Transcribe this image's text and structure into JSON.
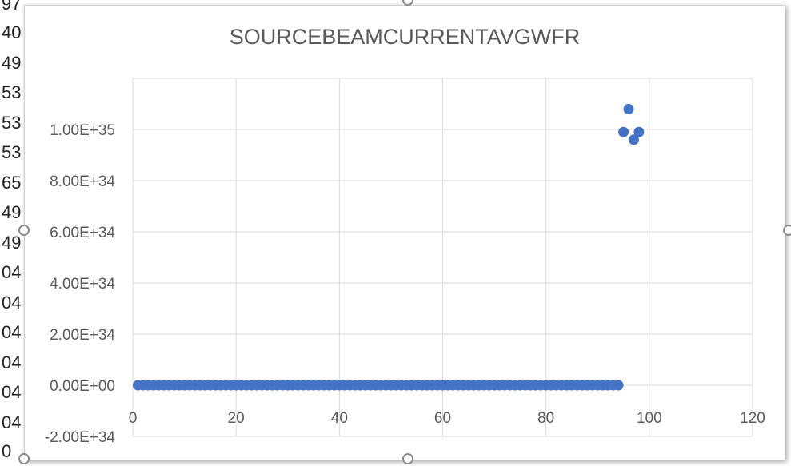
{
  "spreadsheet_fragments": [
    "97",
    "40",
    "49",
    "53",
    "53",
    "53",
    "65",
    "49",
    "49",
    "04",
    "04",
    "04",
    "04",
    "04",
    "04",
    "0"
  ],
  "chart_data": {
    "type": "scatter",
    "title": "SOURCEBEAMCURRENTAVGWFR",
    "xlabel": "",
    "ylabel": "",
    "xlim": [
      0,
      120
    ],
    "ylim": [
      -2e+34,
      1.2e+35
    ],
    "x_ticks": [
      0,
      20,
      40,
      60,
      80,
      100,
      120
    ],
    "y_ticks": [
      -2e+34,
      0,
      2e+34,
      4e+34,
      6e+34,
      8e+34,
      1e+35
    ],
    "x_tick_labels": [
      "0",
      "20",
      "40",
      "60",
      "80",
      "100",
      "120"
    ],
    "y_tick_labels": [
      "-2.00E+34",
      "0.00E+00",
      "2.00E+34",
      "4.00E+34",
      "6.00E+34",
      "8.00E+34",
      "1.00E+35"
    ],
    "grid": true,
    "legend": "none",
    "marker_color": "#4472c4",
    "baseline_series": {
      "x_start": 1,
      "x_end": 94,
      "step": 1,
      "y": 0
    },
    "outliers": [
      {
        "x": 95,
        "y": 9.9e+34
      },
      {
        "x": 96,
        "y": 1.08e+35
      },
      {
        "x": 97,
        "y": 9.6e+34
      },
      {
        "x": 98,
        "y": 9.9e+34
      }
    ]
  }
}
